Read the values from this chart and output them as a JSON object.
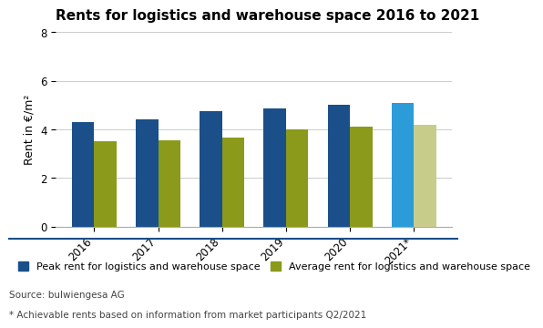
{
  "title": "Rents for logistics and warehouse space 2016 to 2021",
  "ylabel": "Rent in €/m²",
  "years": [
    "2016",
    "2017",
    "2018",
    "2019",
    "2020",
    "2021*"
  ],
  "peak_rents": [
    4.3,
    4.4,
    4.75,
    4.85,
    5.0,
    5.1
  ],
  "avg_rents": [
    3.5,
    3.55,
    3.65,
    4.0,
    4.1,
    4.2
  ],
  "peak_colors": [
    "#1a4f8a",
    "#1a4f8a",
    "#1a4f8a",
    "#1a4f8a",
    "#1a4f8a",
    "#2b9cd8"
  ],
  "avg_colors": [
    "#8b9a1a",
    "#8b9a1a",
    "#8b9a1a",
    "#8b9a1a",
    "#8b9a1a",
    "#c8cc8a"
  ],
  "legend_peak_color": "#1a4f8a",
  "legend_avg_color": "#8b9a1a",
  "legend_peak_label": "Peak rent for logistics and warehouse space",
  "legend_avg_label": "Average rent for logistics and warehouse space",
  "source_text": "Source: bulwiengesa AG",
  "footnote_text": "* Achievable rents based on information from market participants Q2/2021",
  "ylim": [
    0,
    8
  ],
  "yticks": [
    0,
    2,
    4,
    6,
    8
  ],
  "background_color": "#ffffff",
  "bar_width": 0.35,
  "title_fontsize": 11,
  "axis_fontsize": 9,
  "tick_fontsize": 8.5,
  "legend_fontsize": 8,
  "source_fontsize": 7.5,
  "separator_color": "#1a4f8a"
}
